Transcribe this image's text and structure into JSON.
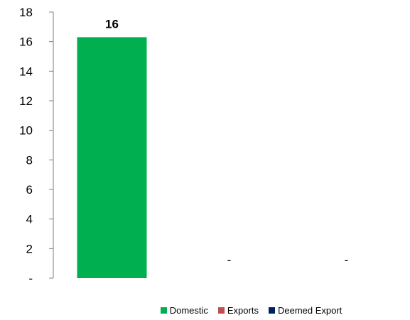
{
  "chart_data": {
    "type": "bar",
    "categories": [
      "Domestic",
      "Exports",
      "Deemed Export"
    ],
    "values": [
      16.3,
      0,
      0
    ],
    "data_labels": [
      "16",
      "-",
      "-"
    ],
    "ylim": [
      0,
      18
    ],
    "yticks": [
      0,
      2,
      4,
      6,
      8,
      10,
      12,
      14,
      16,
      18
    ],
    "ytick_labels": [
      "-",
      "2",
      "4",
      "6",
      "8",
      "10",
      "12",
      "14",
      "16",
      "18"
    ],
    "legend": {
      "placement": "bottom",
      "entries": [
        {
          "label": "Domestic",
          "color": "#00b050"
        },
        {
          "label": "Exports",
          "color": "#c0504d"
        },
        {
          "label": "Deemed Export",
          "color": "#002060"
        }
      ]
    },
    "grid": false
  }
}
